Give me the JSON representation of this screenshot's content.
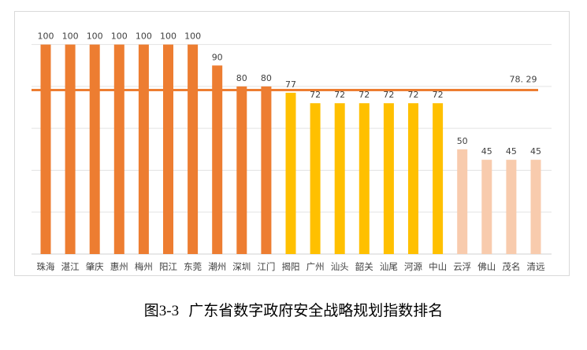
{
  "chart_data": {
    "type": "bar",
    "title": "",
    "xlabel": "",
    "ylabel": "",
    "ylim": [
      0,
      110
    ],
    "grid": true,
    "categories": [
      "珠海",
      "湛江",
      "肇庆",
      "惠州",
      "梅州",
      "阳江",
      "东莞",
      "潮州",
      "深圳",
      "江门",
      "揭阳",
      "广州",
      "汕头",
      "韶关",
      "汕尾",
      "河源",
      "中山",
      "云浮",
      "佛山",
      "茂名",
      "清远"
    ],
    "values": [
      100,
      100,
      100,
      100,
      100,
      100,
      100,
      90,
      80,
      80,
      77,
      72,
      72,
      72,
      72,
      72,
      72,
      50,
      45,
      45,
      45
    ],
    "data_labels": [
      "100",
      "100",
      "100",
      "100",
      "100",
      "100",
      "100",
      "90",
      "80",
      "80",
      "77",
      "72",
      "72",
      "72",
      "72",
      "72",
      "72",
      "50",
      "45",
      "45",
      "45"
    ],
    "bar_colors": [
      "#ed7d31",
      "#ed7d31",
      "#ed7d31",
      "#ed7d31",
      "#ed7d31",
      "#ed7d31",
      "#ed7d31",
      "#ed7d31",
      "#ed7d31",
      "#ed7d31",
      "#ffc000",
      "#ffc000",
      "#ffc000",
      "#ffc000",
      "#ffc000",
      "#ffc000",
      "#ffc000",
      "#f8cbad",
      "#f8cbad",
      "#f8cbad",
      "#f8cbad"
    ],
    "average_line": {
      "value": 78.29,
      "label": "78. 29",
      "color": "#ed7d31"
    }
  },
  "caption": {
    "figure_no": "图3-3",
    "text": "广东省数字政府安全战略规划指数排名"
  }
}
